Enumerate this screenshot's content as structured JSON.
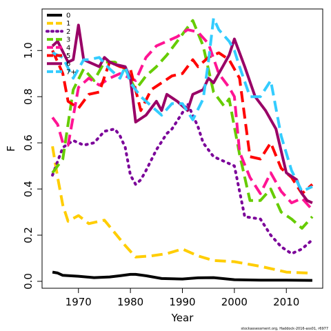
{
  "caption": "stockassessment.org, Haddock-2016-ass01, r6977",
  "chart_data": {
    "type": "line",
    "title": "",
    "xlabel": "Year",
    "ylabel": "F",
    "xlim": [
      1963,
      2017
    ],
    "ylim": [
      -0.03,
      1.18
    ],
    "xticks": [
      1970,
      1980,
      1990,
      2000,
      2010
    ],
    "yticks": [
      0.0,
      0.2,
      0.4,
      0.6,
      0.8,
      1.0
    ],
    "ytick_labels": [
      "0.0",
      "0.2",
      "0.4",
      "0.6",
      "0.8",
      "1.0"
    ],
    "grid": false,
    "legend": "top-left",
    "series": [
      {
        "name": "0",
        "color": "#000000",
        "dash": "solid",
        "x": [
          1965,
          1966,
          1967,
          1970,
          1973,
          1976,
          1978,
          1980,
          1981,
          1983,
          1986,
          1990,
          1993,
          1996,
          2000,
          2005,
          2010,
          2015
        ],
        "y": [
          0.04,
          0.036,
          0.026,
          0.022,
          0.016,
          0.019,
          0.024,
          0.03,
          0.03,
          0.024,
          0.012,
          0.01,
          0.015,
          0.016,
          0.007,
          0.005,
          0.005,
          0.004
        ]
      },
      {
        "name": "1",
        "color": "#ffcd00",
        "dash": "dashed",
        "x": [
          1965,
          1966,
          1967,
          1968,
          1970,
          1972,
          1975,
          1977,
          1979,
          1981,
          1984,
          1987,
          1990,
          1993,
          1996,
          2000,
          2005,
          2010,
          2015
        ],
        "y": [
          0.585,
          0.45,
          0.33,
          0.26,
          0.285,
          0.25,
          0.265,
          0.21,
          0.155,
          0.105,
          0.11,
          0.12,
          0.14,
          0.11,
          0.09,
          0.085,
          0.065,
          0.04,
          0.035
        ]
      },
      {
        "name": "2",
        "color": "#7b0099",
        "dash": "dotted",
        "x": [
          1965,
          1967,
          1969,
          1971,
          1973,
          1975,
          1977,
          1978,
          1979,
          1980,
          1981,
          1982,
          1983,
          1985,
          1987,
          1988,
          1990,
          1991,
          1993,
          1994,
          1996,
          1998,
          2000,
          2002,
          2005,
          2007,
          2009,
          2011,
          2013,
          2015
        ],
        "y": [
          0.46,
          0.58,
          0.61,
          0.59,
          0.6,
          0.65,
          0.66,
          0.63,
          0.58,
          0.46,
          0.42,
          0.44,
          0.48,
          0.57,
          0.64,
          0.66,
          0.73,
          0.77,
          0.67,
          0.6,
          0.54,
          0.52,
          0.5,
          0.28,
          0.27,
          0.2,
          0.15,
          0.12,
          0.14,
          0.18
        ]
      },
      {
        "name": "3",
        "color": "#66cc00",
        "dash": "dashed",
        "x": [
          1965,
          1967,
          1969,
          1971,
          1973,
          1975,
          1977,
          1979,
          1981,
          1983,
          1985,
          1987,
          1989,
          1991,
          1992,
          1994,
          1996,
          1998,
          1999,
          2001,
          2003,
          2005,
          2007,
          2009,
          2011,
          2013,
          2015
        ],
        "y": [
          0.47,
          0.53,
          0.83,
          0.92,
          0.87,
          0.95,
          0.95,
          0.92,
          0.83,
          0.89,
          0.93,
          0.98,
          1.04,
          1.1,
          1.13,
          1.02,
          0.82,
          0.76,
          0.79,
          0.55,
          0.35,
          0.35,
          0.4,
          0.3,
          0.27,
          0.23,
          0.28
        ]
      },
      {
        "name": "4",
        "color": "#ff1493",
        "dash": "dashed",
        "x": [
          1965,
          1966,
          1967,
          1968,
          1970,
          1972,
          1974,
          1976,
          1978,
          1980,
          1981,
          1983,
          1985,
          1987,
          1989,
          1991,
          1993,
          1995,
          1997,
          1999,
          2000,
          2001,
          2003,
          2005,
          2007,
          2009,
          2011,
          2013,
          2015
        ],
        "y": [
          0.71,
          0.68,
          0.6,
          0.59,
          0.84,
          0.88,
          0.85,
          0.88,
          0.9,
          0.88,
          0.87,
          0.97,
          1.02,
          1.04,
          1.06,
          1.09,
          1.08,
          1.03,
          0.9,
          0.84,
          0.8,
          0.56,
          0.45,
          0.38,
          0.47,
          0.39,
          0.34,
          0.36,
          0.31
        ]
      },
      {
        "name": "5",
        "color": "#ff0000",
        "dash": "dashed",
        "x": [
          1965,
          1967,
          1968,
          1970,
          1972,
          1974,
          1976,
          1978,
          1980,
          1982,
          1984,
          1986,
          1988,
          1990,
          1992,
          1993,
          1995,
          1997,
          1999,
          2001,
          2003,
          2005,
          2007,
          2009,
          2011,
          2013,
          2015
        ],
        "y": [
          1.0,
          0.9,
          0.78,
          0.75,
          0.81,
          0.82,
          0.95,
          0.93,
          0.92,
          0.74,
          0.83,
          0.86,
          0.89,
          0.9,
          0.96,
          0.93,
          0.97,
          0.99,
          0.96,
          0.88,
          0.54,
          0.53,
          0.6,
          0.49,
          0.45,
          0.38,
          0.42
        ]
      },
      {
        "name": "6",
        "color": "#990066",
        "dash": "solid",
        "x": [
          1965,
          1966,
          1968,
          1969,
          1970,
          1971,
          1973,
          1974,
          1975,
          1976,
          1977,
          1979,
          1980,
          1981,
          1983,
          1985,
          1986,
          1987,
          1989,
          1990,
          1991,
          1992,
          1994,
          1995,
          1996,
          1997,
          1998,
          1999,
          2000,
          2002,
          2004,
          2006,
          2008,
          2010,
          2012,
          2013,
          2014,
          2015
        ],
        "y": [
          1.02,
          1.04,
          0.95,
          0.96,
          1.11,
          0.96,
          0.94,
          0.93,
          0.97,
          0.95,
          0.94,
          0.93,
          0.88,
          0.69,
          0.72,
          0.78,
          0.74,
          0.81,
          0.78,
          0.76,
          0.74,
          0.81,
          0.83,
          0.88,
          0.86,
          0.9,
          0.94,
          0.98,
          1.05,
          0.93,
          0.8,
          0.74,
          0.66,
          0.47,
          0.44,
          0.38,
          0.35,
          0.34
        ]
      },
      {
        "name": "7+",
        "color": "#33ccff",
        "dash": "dashed",
        "x": [
          1965,
          1967,
          1969,
          1971,
          1972,
          1974,
          1976,
          1978,
          1979,
          1980,
          1982,
          1984,
          1986,
          1988,
          1990,
          1992,
          1994,
          1995,
          1996,
          1997,
          1999,
          2000,
          2001,
          2003,
          2005,
          2007,
          2009,
          2011,
          2013,
          2015
        ],
        "y": [
          0.99,
          0.97,
          0.88,
          0.96,
          0.96,
          0.97,
          0.92,
          0.88,
          0.93,
          0.86,
          0.8,
          0.76,
          0.72,
          0.77,
          0.77,
          0.7,
          0.79,
          0.95,
          1.14,
          1.09,
          1.04,
          1.0,
          0.93,
          0.8,
          0.8,
          0.87,
          0.63,
          0.48,
          0.39,
          0.41
        ]
      }
    ]
  }
}
